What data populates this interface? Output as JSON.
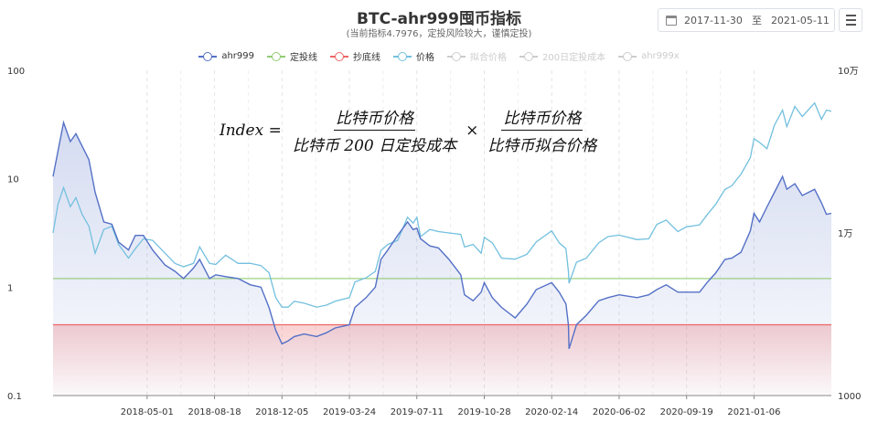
{
  "header": {
    "title": "BTC-ahr999囤币指标",
    "subtitle": "(当前指标4.7976，定投风险较大，谨慎定投)"
  },
  "date_range": {
    "start": "2017-11-30",
    "separator": "至",
    "end": "2021-05-11"
  },
  "legend": [
    {
      "label": "ahr999",
      "color": "#5470c6",
      "active": true
    },
    {
      "label": "定投线",
      "color": "#91cc75",
      "active": true
    },
    {
      "label": "抄底线",
      "color": "#ee6666",
      "active": true
    },
    {
      "label": "价格",
      "color": "#73c0de",
      "active": true
    },
    {
      "label": "拟合价格",
      "color": "#cccccc",
      "active": false
    },
    {
      "label": "200日定投成本",
      "color": "#cccccc",
      "active": false
    },
    {
      "label": "ahr999x",
      "color": "#cccccc",
      "active": false
    }
  ],
  "formula": {
    "lhs": "Index =",
    "num1": "比特币价格",
    "den1": "比特币 200 日定投成本",
    "times": "×",
    "num2": "比特币价格",
    "den2": "比特币拟合价格"
  },
  "chart_data": {
    "type": "line",
    "x_start": "2017-11-30",
    "x_end": "2021-05-11",
    "x_tick_labels": [
      "2018-05-01",
      "2018-08-18",
      "2018-12-05",
      "2019-03-24",
      "2019-07-11",
      "2019-10-28",
      "2020-02-14",
      "2020-06-02",
      "2020-09-19",
      "2021-01-06"
    ],
    "y_left": {
      "scale": "log",
      "range": [
        0.1,
        100
      ],
      "tick_labels": [
        "0.1",
        "1",
        "10",
        "100"
      ]
    },
    "y_right": {
      "scale": "log",
      "range": [
        1000,
        100000
      ],
      "tick_labels": [
        "1000",
        "1万",
        "10万"
      ]
    },
    "grid": "vertical dashed",
    "lines": {
      "dingtou": 1.2,
      "chaodi": 0.45
    },
    "series": [
      {
        "name": "ahr999",
        "axis": "left",
        "x": [
          "2017-11-30",
          "2017-12-08",
          "2017-12-17",
          "2017-12-28",
          "2018-01-06",
          "2018-01-16",
          "2018-01-27",
          "2018-02-06",
          "2018-02-20",
          "2018-03-05",
          "2018-03-16",
          "2018-04-01",
          "2018-04-12",
          "2018-04-25",
          "2018-05-10",
          "2018-05-30",
          "2018-06-15",
          "2018-06-29",
          "2018-07-15",
          "2018-07-25",
          "2018-08-10",
          "2018-08-20",
          "2018-09-05",
          "2018-09-25",
          "2018-10-15",
          "2018-11-01",
          "2018-11-14",
          "2018-11-25",
          "2018-12-05",
          "2018-12-15",
          "2018-12-25",
          "2019-01-10",
          "2019-01-30",
          "2019-02-15",
          "2019-03-01",
          "2019-03-24",
          "2019-04-02",
          "2019-04-20",
          "2019-05-05",
          "2019-05-14",
          "2019-05-25",
          "2019-06-10",
          "2019-06-26",
          "2019-07-05",
          "2019-07-11",
          "2019-07-17",
          "2019-08-01",
          "2019-08-15",
          "2019-09-01",
          "2019-09-20",
          "2019-09-26",
          "2019-10-10",
          "2019-10-23",
          "2019-10-28",
          "2019-11-10",
          "2019-11-25",
          "2019-12-17",
          "2020-01-05",
          "2020-01-20",
          "2020-02-14",
          "2020-02-26",
          "2020-03-08",
          "2020-03-12",
          "2020-03-13",
          "2020-03-25",
          "2020-04-10",
          "2020-04-30",
          "2020-05-15",
          "2020-06-02",
          "2020-07-01",
          "2020-07-20",
          "2020-08-02",
          "2020-08-17",
          "2020-09-05",
          "2020-09-19",
          "2020-10-10",
          "2020-10-22",
          "2020-11-05",
          "2020-11-20",
          "2020-12-01",
          "2020-12-16",
          "2020-12-31",
          "2021-01-06",
          "2021-01-15",
          "2021-01-27",
          "2021-02-08",
          "2021-02-21",
          "2021-02-28",
          "2021-03-13",
          "2021-03-25",
          "2021-04-14",
          "2021-04-25",
          "2021-05-03",
          "2021-05-11"
        ],
        "values": [
          10.5,
          18,
          33,
          22,
          26,
          20,
          15,
          7.5,
          4,
          3.8,
          2.6,
          2.2,
          3,
          3,
          2.2,
          1.6,
          1.4,
          1.2,
          1.5,
          1.8,
          1.2,
          1.3,
          1.25,
          1.2,
          1.05,
          1,
          0.65,
          0.4,
          0.3,
          0.32,
          0.35,
          0.37,
          0.35,
          0.38,
          0.42,
          0.45,
          0.65,
          0.8,
          1,
          1.8,
          2.2,
          3,
          4,
          3.4,
          3.5,
          2.8,
          2.4,
          2.3,
          1.8,
          1.3,
          0.85,
          0.75,
          0.9,
          1.1,
          0.8,
          0.65,
          0.52,
          0.7,
          0.95,
          1.1,
          0.9,
          0.7,
          0.45,
          0.27,
          0.45,
          0.55,
          0.75,
          0.8,
          0.85,
          0.8,
          0.85,
          0.95,
          1.05,
          0.9,
          0.9,
          0.9,
          1.1,
          1.35,
          1.8,
          1.85,
          2.1,
          3.3,
          4.8,
          4,
          5.5,
          7.5,
          10.5,
          8,
          9,
          7,
          8,
          6,
          4.7,
          4.8
        ]
      },
      {
        "name": "价格",
        "axis": "right",
        "x": [
          "2017-11-30",
          "2017-12-08",
          "2017-12-17",
          "2017-12-28",
          "2018-01-06",
          "2018-01-16",
          "2018-01-27",
          "2018-02-06",
          "2018-02-20",
          "2018-03-05",
          "2018-03-16",
          "2018-04-01",
          "2018-04-12",
          "2018-04-25",
          "2018-05-10",
          "2018-05-30",
          "2018-06-15",
          "2018-06-29",
          "2018-07-15",
          "2018-07-25",
          "2018-08-10",
          "2018-08-20",
          "2018-09-05",
          "2018-09-25",
          "2018-10-15",
          "2018-11-01",
          "2018-11-14",
          "2018-11-25",
          "2018-12-05",
          "2018-12-15",
          "2018-12-25",
          "2019-01-10",
          "2019-01-30",
          "2019-02-15",
          "2019-03-01",
          "2019-03-24",
          "2019-04-02",
          "2019-04-20",
          "2019-05-05",
          "2019-05-14",
          "2019-05-25",
          "2019-06-10",
          "2019-06-26",
          "2019-07-05",
          "2019-07-11",
          "2019-07-17",
          "2019-08-01",
          "2019-08-15",
          "2019-09-01",
          "2019-09-20",
          "2019-09-26",
          "2019-10-10",
          "2019-10-23",
          "2019-10-28",
          "2019-11-10",
          "2019-11-25",
          "2019-12-17",
          "2020-01-05",
          "2020-01-20",
          "2020-02-14",
          "2020-02-26",
          "2020-03-08",
          "2020-03-12",
          "2020-03-13",
          "2020-03-25",
          "2020-04-10",
          "2020-04-30",
          "2020-05-15",
          "2020-06-02",
          "2020-07-01",
          "2020-07-20",
          "2020-08-02",
          "2020-08-17",
          "2020-09-05",
          "2020-09-19",
          "2020-10-10",
          "2020-10-22",
          "2020-11-05",
          "2020-11-20",
          "2020-12-01",
          "2020-12-16",
          "2020-12-31",
          "2021-01-06",
          "2021-01-15",
          "2021-01-27",
          "2021-02-08",
          "2021-02-21",
          "2021-02-28",
          "2021-03-13",
          "2021-03-25",
          "2021-04-14",
          "2021-04-25",
          "2021-05-03",
          "2021-05-11"
        ],
        "values": [
          10000,
          15000,
          19000,
          14500,
          16500,
          13000,
          11000,
          7500,
          10500,
          11000,
          8500,
          7000,
          8000,
          9200,
          9000,
          7500,
          6500,
          6200,
          6500,
          8200,
          6500,
          6400,
          7300,
          6500,
          6500,
          6300,
          5700,
          4000,
          3500,
          3500,
          3800,
          3700,
          3500,
          3600,
          3800,
          4000,
          5000,
          5300,
          5800,
          7800,
          8500,
          9000,
          12500,
          11500,
          12500,
          9500,
          10500,
          10200,
          10000,
          9800,
          8200,
          8500,
          7500,
          9400,
          8700,
          7000,
          6900,
          7400,
          8800,
          10300,
          8700,
          8000,
          5800,
          4900,
          6600,
          7000,
          8700,
          9500,
          9700,
          9100,
          9200,
          11300,
          12000,
          10200,
          10900,
          11200,
          12900,
          15000,
          18500,
          19500,
          23000,
          29000,
          38000,
          36000,
          33000,
          46000,
          57000,
          45000,
          60000,
          52000,
          63000,
          50000,
          57000,
          56000
        ]
      }
    ]
  }
}
